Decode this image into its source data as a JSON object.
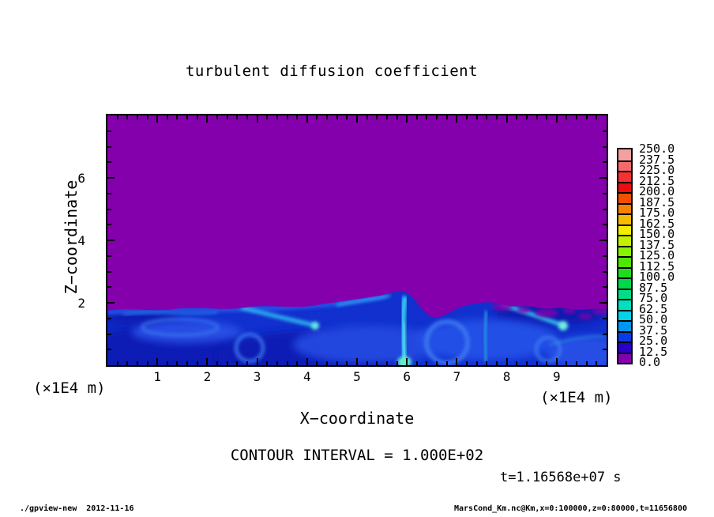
{
  "title": "turbulent diffusion coefficient",
  "axes": {
    "x": {
      "label": "X−coordinate",
      "unit": "(×1E4 m)",
      "min": 0,
      "max": 10,
      "major_ticks": [
        1,
        2,
        3,
        4,
        5,
        6,
        7,
        8,
        9
      ],
      "minor_step": 0.2
    },
    "y": {
      "label": "Z−coordinate",
      "unit": "(×1E4 m)",
      "min": 0,
      "max": 8,
      "major_ticks": [
        2,
        4,
        6
      ],
      "minor_step": 0.5
    }
  },
  "colorbar": {
    "labels_top_to_bottom": [
      "250.0",
      "237.5",
      "225.0",
      "212.5",
      "200.0",
      "187.5",
      "175.0",
      "162.5",
      "150.0",
      "137.5",
      "125.0",
      "112.5",
      "100.0",
      "87.5",
      "75.0",
      "62.5",
      "50.0",
      "37.5",
      "25.0",
      "12.5",
      "0.0"
    ],
    "colors_top_to_bottom": [
      "#F4A0A0",
      "#F46A6A",
      "#F43232",
      "#EE0C0C",
      "#F54E00",
      "#F58400",
      "#F5BC00",
      "#F2EE00",
      "#C2F200",
      "#8AF200",
      "#4FE600",
      "#1EDC1E",
      "#00D84B",
      "#00DC87",
      "#00E0BE",
      "#00D2E8",
      "#0096F0",
      "#0A3CE6",
      "#2A00C8",
      "#8400AC"
    ]
  },
  "field_colors": {
    "background_low": "#8400AC",
    "band_base": "#1130CE"
  },
  "annotations": {
    "contour_interval": "CONTOUR INTERVAL = 1.000E+02",
    "time": "t=1.16568e+07 s"
  },
  "footer": {
    "left": "./gpview-new  2012-11-16",
    "right": "MarsCond_Km.nc@Km,x=0:100000,z=0:80000,t=11656800"
  },
  "chart_data": {
    "type": "heatmap",
    "title": "turbulent diffusion coefficient",
    "xlabel": "X−coordinate (×1E4 m)",
    "ylabel": "Z−coordinate (×1E4 m)",
    "xlim_m": [
      0,
      100000
    ],
    "zlim_m": [
      0,
      80000
    ],
    "x_tick_labels": [
      "1",
      "2",
      "3",
      "4",
      "5",
      "6",
      "7",
      "8",
      "9"
    ],
    "y_tick_labels": [
      "2",
      "4",
      "6"
    ],
    "color_levels": [
      0,
      12.5,
      25,
      37.5,
      50,
      62.5,
      75,
      87.5,
      100,
      112.5,
      125,
      137.5,
      150,
      162.5,
      175,
      187.5,
      200,
      212.5,
      225,
      237.5,
      250
    ],
    "contour_interval": 100.0,
    "time_seconds": 11656800,
    "time_label": "t=1.16568e+07 s",
    "legend_position": "right",
    "grid": false,
    "description": "Turbulent diffusion coefficient Km: near-zero (0-12.5 level, purple) above z≈2×1E4 m; turbulent boundary layer below z≈2×1E4 m with swirling values ~12.5-100 (navy/blue/cyan), brightest updraft plume near x≈6×1E4 m and cyan filaments near x≈3-4 and x≈8×1E4 m.",
    "approx_grid": {
      "x_centers_1e4m": [
        0.5,
        1.5,
        2.5,
        3.5,
        4.5,
        5.5,
        6.5,
        7.5,
        8.5,
        9.5
      ],
      "z_centers_1e4m": [
        7.5,
        6.5,
        5.5,
        4.5,
        3.5,
        2.5,
        1.5,
        0.5
      ],
      "values_rows_top_to_bottom": [
        [
          0,
          0,
          0,
          0,
          0,
          0,
          0,
          0,
          0,
          0
        ],
        [
          0,
          0,
          0,
          0,
          0,
          0,
          0,
          0,
          0,
          0
        ],
        [
          0,
          0,
          0,
          0,
          0,
          0,
          0,
          0,
          0,
          0
        ],
        [
          0,
          0,
          0,
          0,
          0,
          0,
          0,
          0,
          0,
          0
        ],
        [
          0,
          0,
          0,
          0,
          0,
          0,
          0,
          0,
          0,
          0
        ],
        [
          0,
          0,
          0,
          0,
          0,
          0,
          0,
          0,
          0,
          0
        ],
        [
          20,
          25,
          30,
          25,
          20,
          45,
          30,
          35,
          15,
          10
        ],
        [
          40,
          45,
          50,
          45,
          40,
          75,
          55,
          50,
          35,
          30
        ]
      ]
    }
  }
}
